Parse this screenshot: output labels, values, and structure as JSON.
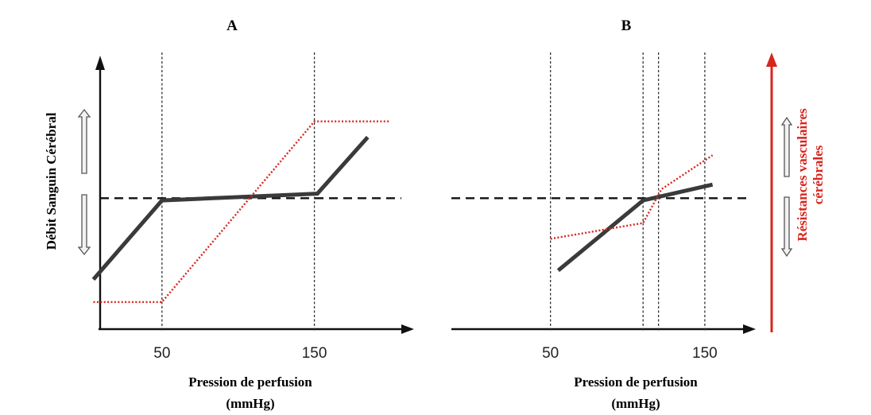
{
  "colors": {
    "flow": "#3a3a3a",
    "resistance": "#d7261e",
    "axis": "#111111",
    "guide": "#333333",
    "baseline": "#111111"
  },
  "labels": {
    "left_axis": "Débit Sanguin Cérébral",
    "right_axis_line1": "Résistances vasculaires",
    "right_axis_line2": "cérébrales",
    "increase_icon": "outline-arrow-up-icon",
    "decrease_icon": "outline-arrow-down-icon"
  },
  "chart_data": [
    {
      "panel": "A",
      "type": "line",
      "title": "A",
      "xlabel_line1": "Pression de perfusion",
      "xlabel_line2": "(mmHg)",
      "xticks": [
        50,
        150
      ],
      "xlim": [
        -25,
        230
      ],
      "ylim": [
        0,
        100
      ],
      "grid": false,
      "vertical_guides": [
        50,
        150
      ],
      "baseline": 58,
      "series": [
        {
          "key": "flow",
          "style": "solid",
          "color": "#3a3a3a",
          "x": [
            5,
            50,
            152,
            185
          ],
          "y": [
            22,
            57,
            60,
            85
          ]
        },
        {
          "key": "resistance",
          "style": "dotted",
          "color": "#d7261e",
          "x": [
            5,
            50,
            150,
            200
          ],
          "y": [
            12,
            12,
            92,
            92
          ]
        }
      ]
    },
    {
      "panel": "B",
      "type": "line",
      "title": "B",
      "xlabel_line1": "Pression de perfusion",
      "xlabel_line2": "(mmHg)",
      "xticks": [
        50,
        150
      ],
      "xlim": [
        -25,
        200
      ],
      "ylim": [
        0,
        100
      ],
      "grid": false,
      "vertical_guides": [
        50,
        110,
        120,
        150
      ],
      "baseline": 58,
      "series": [
        {
          "key": "flow",
          "style": "solid",
          "color": "#3a3a3a",
          "x": [
            55,
            110,
            155
          ],
          "y": [
            26,
            57,
            64
          ]
        },
        {
          "key": "resistance",
          "style": "dotted",
          "color": "#d7261e",
          "x": [
            50,
            110,
            122,
            155
          ],
          "y": [
            40,
            47,
            62,
            77
          ]
        }
      ]
    }
  ]
}
